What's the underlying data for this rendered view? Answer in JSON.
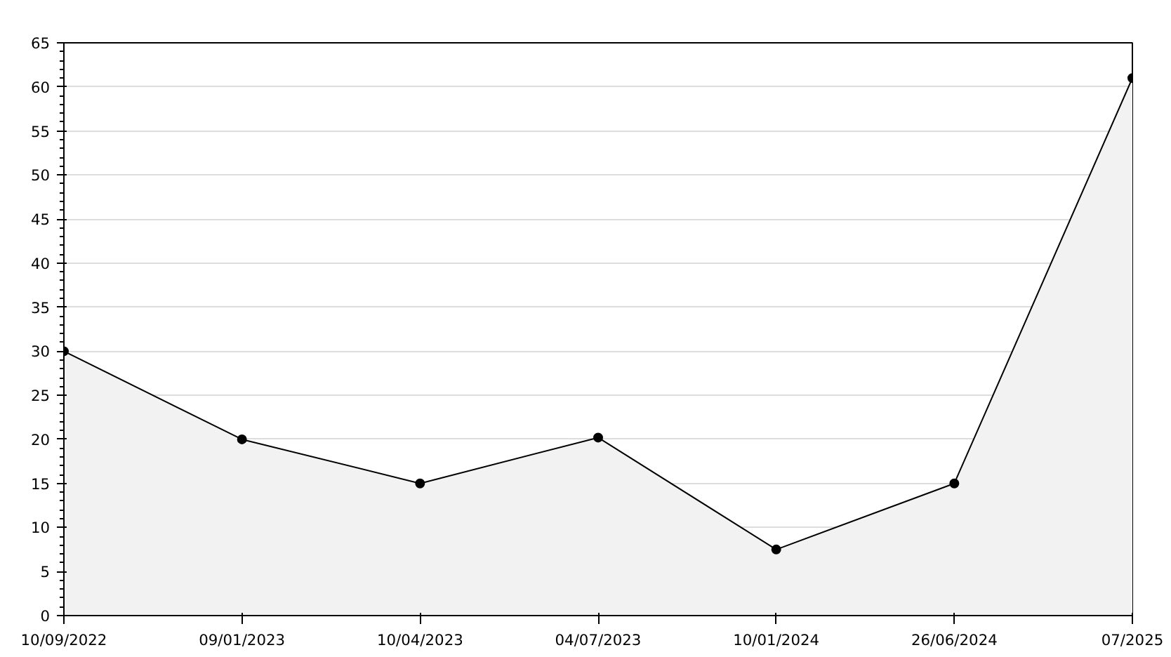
{
  "chart_data": {
    "type": "area",
    "categories": [
      "10/09/2022",
      "09/01/2023",
      "10/04/2023",
      "04/07/2023",
      "10/01/2024",
      "26/06/2024",
      "07/2025"
    ],
    "series": [
      {
        "color": "#000000",
        "values": [
          30,
          20,
          15,
          20.2,
          7.5,
          15,
          61
        ]
      }
    ],
    "ylim": [
      0,
      65
    ],
    "yticks": [
      0,
      5,
      10,
      15,
      20,
      25,
      30,
      35,
      40,
      45,
      50,
      55,
      60,
      65
    ],
    "grid": "y",
    "marker": "circle",
    "line_style": "solid"
  }
}
